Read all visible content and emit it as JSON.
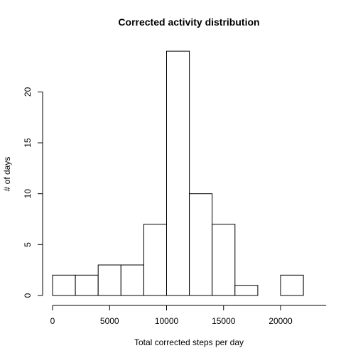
{
  "chart_data": {
    "type": "bar",
    "title": "Corrected activity distribution",
    "xlabel": "Total corrected steps per day",
    "ylabel": "# of days",
    "bins": [
      {
        "x0": 0,
        "x1": 2000,
        "count": 2
      },
      {
        "x0": 2000,
        "x1": 4000,
        "count": 2
      },
      {
        "x0": 4000,
        "x1": 6000,
        "count": 3
      },
      {
        "x0": 6000,
        "x1": 8000,
        "count": 3
      },
      {
        "x0": 8000,
        "x1": 10000,
        "count": 7
      },
      {
        "x0": 10000,
        "x1": 12000,
        "count": 24
      },
      {
        "x0": 12000,
        "x1": 14000,
        "count": 10
      },
      {
        "x0": 14000,
        "x1": 16000,
        "count": 7
      },
      {
        "x0": 16000,
        "x1": 18000,
        "count": 1
      },
      {
        "x0": 18000,
        "x1": 20000,
        "count": 0
      },
      {
        "x0": 20000,
        "x1": 22000,
        "count": 2
      }
    ],
    "xticks": [
      0,
      5000,
      10000,
      15000,
      20000
    ],
    "yticks": [
      0,
      5,
      10,
      15,
      20
    ],
    "xlim": [
      0,
      24000
    ],
    "ylim": [
      0,
      24
    ],
    "grid": false
  }
}
